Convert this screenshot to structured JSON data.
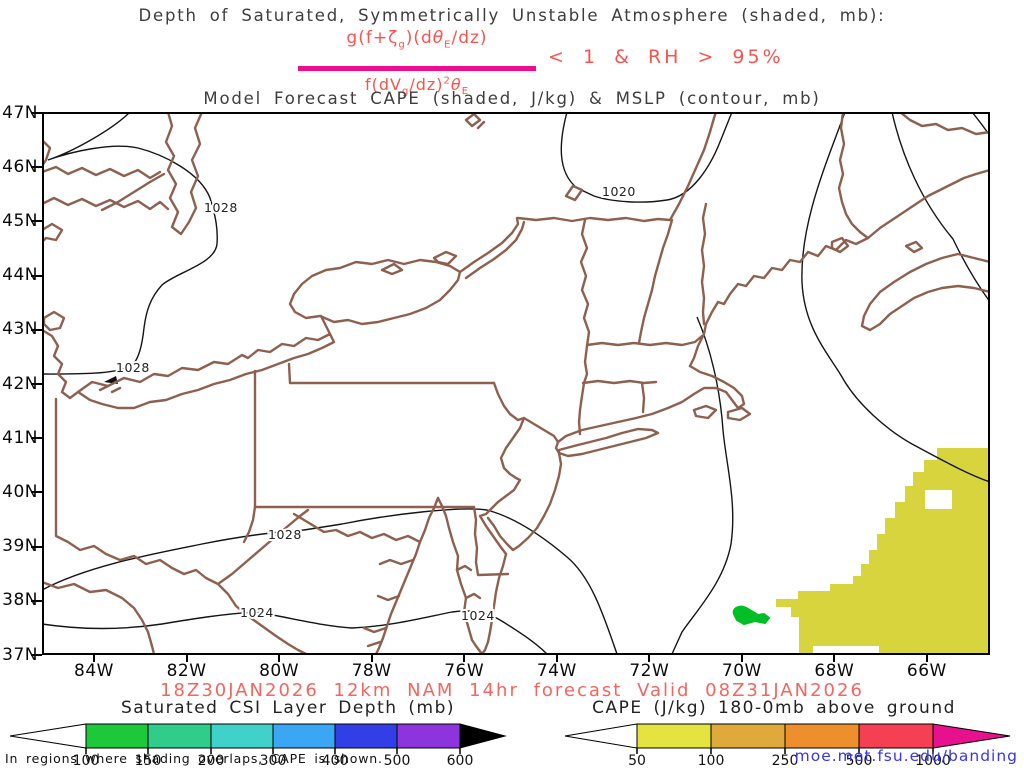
{
  "titles": {
    "line1": "Depth of Saturated, Symmetrically Unstable Atmosphere (shaded, mb):",
    "subtitle": "Model Forecast CAPE (shaded, J/kg) & MSLP (contour, mb)"
  },
  "formula": {
    "num_p1": "g(f+ζ",
    "num_sub1": "g",
    "num_p2": ")(d",
    "num_theta": "θ",
    "num_sub2": "E",
    "num_p3": "/dz)",
    "den_p1": "f(dV",
    "den_sub1": "g",
    "den_p2": "/dz)",
    "den_sup": "2",
    "den_theta": "θ",
    "den_sub2": "E",
    "condition": "< 1 & RH > 95%",
    "bar_color": "#ee0d8c",
    "text_color": "#f8544e"
  },
  "map": {
    "lat_labels": [
      "47N",
      "46N",
      "45N",
      "44N",
      "43N",
      "42N",
      "41N",
      "40N",
      "39N",
      "38N",
      "37N"
    ],
    "lon_labels": [
      "84W",
      "82W",
      "80W",
      "78W",
      "76W",
      "74W",
      "72W",
      "70W",
      "68W",
      "66W"
    ],
    "contour_labels": [
      "1028",
      "1020",
      "1028",
      "1028",
      "1024",
      "1024"
    ],
    "boundary_color": "#8d6050",
    "contour_color": "#151515",
    "cape_shade_color": "#d7d43e",
    "csi_shade_color": "#00bf25"
  },
  "dateline": "18Z30JAN2026 12km NAM 14hr forecast Valid 08Z31JAN2026",
  "colorbars": {
    "csi": {
      "title": "Saturated CSI Layer Depth (mb)",
      "tick_labels": [
        "100",
        "150",
        "200",
        "300",
        "400",
        "500",
        "600"
      ],
      "segment_colors": [
        "#1dc83b",
        "#30cc8c",
        "#40d1ca",
        "#3ba6f4",
        "#333fe6",
        "#8c35dd"
      ],
      "arrow_color": "#000000"
    },
    "cape": {
      "title": "CAPE (J/kg) 180-0mb above ground",
      "tick_labels": [
        "50",
        "100",
        "250",
        "500",
        "1000"
      ],
      "segment_colors": [
        "#e5e33f",
        "#e0a93c",
        "#ee8f2e",
        "#f54053"
      ],
      "arrow_color": "#e8118d"
    }
  },
  "footer": {
    "note": "In regions where shading overlaps, CAPE is shown.",
    "link": "moe.met.fsu.edu/banding"
  }
}
